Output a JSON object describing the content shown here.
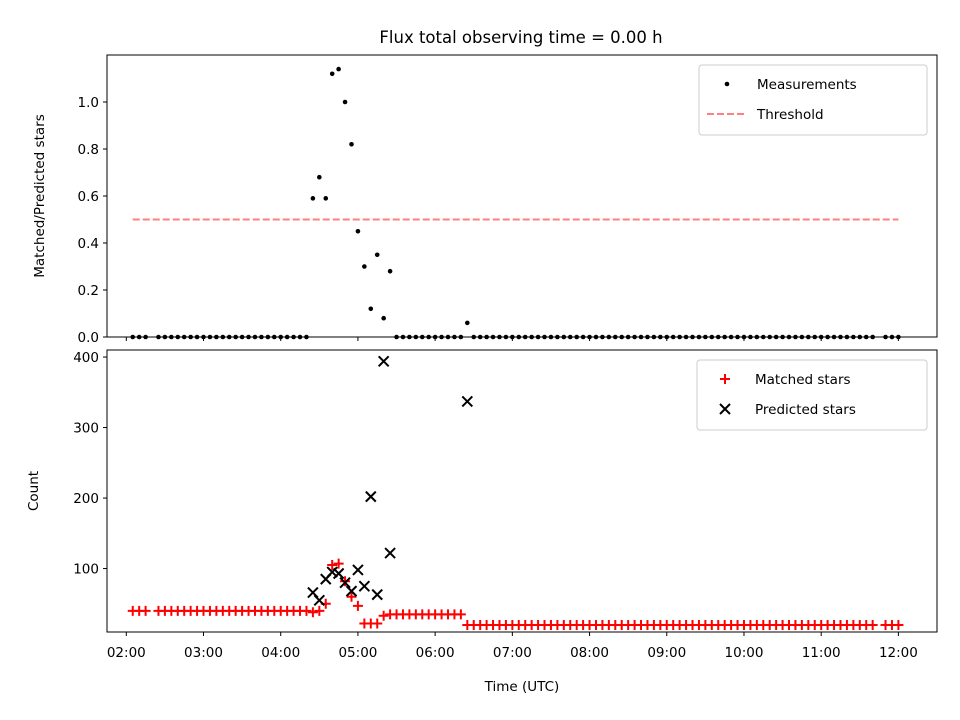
{
  "title": "Flux total observing time = 0.00 h",
  "chart_data": [
    {
      "type": "scatter",
      "ylabel": "Matched/Predicted stars",
      "ylim": [
        0,
        1.2
      ],
      "yticks": [
        0.0,
        0.2,
        0.4,
        0.6,
        0.8,
        1.0
      ],
      "yticklabels": [
        "0.0",
        "0.2",
        "0.4",
        "0.6",
        "0.8",
        "1.0"
      ],
      "xlim": [
        "01:45",
        "12:30"
      ],
      "legend": {
        "position": "top-right",
        "entries": [
          "Measurements",
          "Threshold"
        ]
      },
      "series": [
        {
          "name": "Measurements",
          "marker": "dot",
          "color": "#000000",
          "points": [
            [
              "02:05",
              0.0
            ],
            [
              "02:10",
              0.0
            ],
            [
              "02:15",
              0.0
            ],
            [
              "02:25",
              0.0
            ],
            [
              "02:30",
              0.0
            ],
            [
              "02:35",
              0.0
            ],
            [
              "02:40",
              0.0
            ],
            [
              "02:45",
              0.0
            ],
            [
              "02:50",
              0.0
            ],
            [
              "02:55",
              0.0
            ],
            [
              "03:00",
              0.0
            ],
            [
              "03:05",
              0.0
            ],
            [
              "03:10",
              0.0
            ],
            [
              "03:15",
              0.0
            ],
            [
              "03:20",
              0.0
            ],
            [
              "03:25",
              0.0
            ],
            [
              "03:30",
              0.0
            ],
            [
              "03:35",
              0.0
            ],
            [
              "03:40",
              0.0
            ],
            [
              "03:45",
              0.0
            ],
            [
              "03:50",
              0.0
            ],
            [
              "03:55",
              0.0
            ],
            [
              "04:00",
              0.0
            ],
            [
              "04:05",
              0.0
            ],
            [
              "04:10",
              0.0
            ],
            [
              "04:15",
              0.0
            ],
            [
              "04:20",
              0.0
            ],
            [
              "04:25",
              0.59
            ],
            [
              "04:30",
              0.68
            ],
            [
              "04:35",
              0.59
            ],
            [
              "04:40",
              1.12
            ],
            [
              "04:45",
              1.14
            ],
            [
              "04:50",
              1.0
            ],
            [
              "04:55",
              0.82
            ],
            [
              "05:00",
              0.45
            ],
            [
              "05:05",
              0.3
            ],
            [
              "05:10",
              0.12
            ],
            [
              "05:15",
              0.35
            ],
            [
              "05:20",
              0.08
            ],
            [
              "05:25",
              0.28
            ],
            [
              "05:30",
              0.0
            ],
            [
              "05:35",
              0.0
            ],
            [
              "05:40",
              0.0
            ],
            [
              "05:45",
              0.0
            ],
            [
              "05:50",
              0.0
            ],
            [
              "05:55",
              0.0
            ],
            [
              "06:00",
              0.0
            ],
            [
              "06:05",
              0.0
            ],
            [
              "06:10",
              0.0
            ],
            [
              "06:15",
              0.0
            ],
            [
              "06:20",
              0.0
            ],
            [
              "06:25",
              0.06
            ],
            [
              "06:30",
              0.0
            ],
            [
              "06:35",
              0.0
            ],
            [
              "06:40",
              0.0
            ],
            [
              "06:45",
              0.0
            ],
            [
              "06:50",
              0.0
            ],
            [
              "06:55",
              0.0
            ],
            [
              "07:00",
              0.0
            ],
            [
              "07:05",
              0.0
            ],
            [
              "07:10",
              0.0
            ],
            [
              "07:15",
              0.0
            ],
            [
              "07:20",
              0.0
            ],
            [
              "07:25",
              0.0
            ],
            [
              "07:30",
              0.0
            ],
            [
              "07:35",
              0.0
            ],
            [
              "07:40",
              0.0
            ],
            [
              "07:45",
              0.0
            ],
            [
              "07:50",
              0.0
            ],
            [
              "07:55",
              0.0
            ],
            [
              "08:00",
              0.0
            ],
            [
              "08:05",
              0.0
            ],
            [
              "08:10",
              0.0
            ],
            [
              "08:15",
              0.0
            ],
            [
              "08:20",
              0.0
            ],
            [
              "08:25",
              0.0
            ],
            [
              "08:30",
              0.0
            ],
            [
              "08:35",
              0.0
            ],
            [
              "08:40",
              0.0
            ],
            [
              "08:45",
              0.0
            ],
            [
              "08:50",
              0.0
            ],
            [
              "08:55",
              0.0
            ],
            [
              "09:00",
              0.0
            ],
            [
              "09:05",
              0.0
            ],
            [
              "09:10",
              0.0
            ],
            [
              "09:15",
              0.0
            ],
            [
              "09:20",
              0.0
            ],
            [
              "09:25",
              0.0
            ],
            [
              "09:30",
              0.0
            ],
            [
              "09:35",
              0.0
            ],
            [
              "09:40",
              0.0
            ],
            [
              "09:45",
              0.0
            ],
            [
              "09:50",
              0.0
            ],
            [
              "09:55",
              0.0
            ],
            [
              "10:00",
              0.0
            ],
            [
              "10:05",
              0.0
            ],
            [
              "10:10",
              0.0
            ],
            [
              "10:15",
              0.0
            ],
            [
              "10:20",
              0.0
            ],
            [
              "10:25",
              0.0
            ],
            [
              "10:30",
              0.0
            ],
            [
              "10:35",
              0.0
            ],
            [
              "10:40",
              0.0
            ],
            [
              "10:45",
              0.0
            ],
            [
              "10:50",
              0.0
            ],
            [
              "10:55",
              0.0
            ],
            [
              "11:00",
              0.0
            ],
            [
              "11:05",
              0.0
            ],
            [
              "11:10",
              0.0
            ],
            [
              "11:15",
              0.0
            ],
            [
              "11:20",
              0.0
            ],
            [
              "11:25",
              0.0
            ],
            [
              "11:30",
              0.0
            ],
            [
              "11:35",
              0.0
            ],
            [
              "11:40",
              0.0
            ],
            [
              "11:50",
              0.0
            ],
            [
              "11:55",
              0.0
            ],
            [
              "12:00",
              0.0
            ]
          ]
        },
        {
          "name": "Threshold",
          "style": "dashed-line",
          "color": "#ff7f7f",
          "points": [
            [
              "02:05",
              0.5
            ],
            [
              "12:00",
              0.5
            ]
          ]
        }
      ]
    },
    {
      "type": "scatter",
      "xlabel": "Time (UTC)",
      "ylabel": "Count",
      "ylim": [
        10,
        410
      ],
      "yticks": [
        100,
        200,
        300,
        400
      ],
      "yticklabels": [
        "100",
        "200",
        "300",
        "400"
      ],
      "xlim": [
        "01:45",
        "12:30"
      ],
      "xticks": [
        "02:00",
        "03:00",
        "04:00",
        "05:00",
        "06:00",
        "07:00",
        "08:00",
        "09:00",
        "10:00",
        "11:00",
        "12:00"
      ],
      "xticklabels": [
        "02:00",
        "03:00",
        "04:00",
        "05:00",
        "06:00",
        "07:00",
        "08:00",
        "09:00",
        "10:00",
        "11:00",
        "12:00"
      ],
      "legend": {
        "position": "top-right",
        "entries": [
          "Matched stars",
          "Predicted stars"
        ]
      },
      "series": [
        {
          "name": "Matched stars",
          "marker": "plus",
          "color": "#ff0000",
          "points": [
            [
              "02:05",
              40
            ],
            [
              "02:10",
              40
            ],
            [
              "02:15",
              40
            ],
            [
              "02:25",
              40
            ],
            [
              "02:30",
              40
            ],
            [
              "02:35",
              40
            ],
            [
              "02:40",
              40
            ],
            [
              "02:45",
              40
            ],
            [
              "02:50",
              40
            ],
            [
              "02:55",
              40
            ],
            [
              "03:00",
              40
            ],
            [
              "03:05",
              40
            ],
            [
              "03:10",
              40
            ],
            [
              "03:15",
              40
            ],
            [
              "03:20",
              40
            ],
            [
              "03:25",
              40
            ],
            [
              "03:30",
              40
            ],
            [
              "03:35",
              40
            ],
            [
              "03:40",
              40
            ],
            [
              "03:45",
              40
            ],
            [
              "03:50",
              40
            ],
            [
              "03:55",
              40
            ],
            [
              "04:00",
              40
            ],
            [
              "04:05",
              40
            ],
            [
              "04:10",
              40
            ],
            [
              "04:15",
              40
            ],
            [
              "04:20",
              40
            ],
            [
              "04:25",
              38
            ],
            [
              "04:30",
              40
            ],
            [
              "04:35",
              50
            ],
            [
              "04:40",
              105
            ],
            [
              "04:45",
              107
            ],
            [
              "04:50",
              82
            ],
            [
              "04:55",
              60
            ],
            [
              "05:00",
              47
            ],
            [
              "05:05",
              22
            ],
            [
              "05:10",
              22
            ],
            [
              "05:15",
              22
            ],
            [
              "05:20",
              33
            ],
            [
              "05:25",
              35
            ],
            [
              "05:30",
              35
            ],
            [
              "05:35",
              35
            ],
            [
              "05:40",
              35
            ],
            [
              "05:45",
              35
            ],
            [
              "05:50",
              35
            ],
            [
              "05:55",
              35
            ],
            [
              "06:00",
              35
            ],
            [
              "06:05",
              35
            ],
            [
              "06:10",
              35
            ],
            [
              "06:15",
              35
            ],
            [
              "06:20",
              35
            ],
            [
              "06:25",
              20
            ],
            [
              "06:30",
              20
            ],
            [
              "06:35",
              20
            ],
            [
              "06:40",
              20
            ],
            [
              "06:45",
              20
            ],
            [
              "06:50",
              20
            ],
            [
              "06:55",
              20
            ],
            [
              "07:00",
              20
            ],
            [
              "07:05",
              20
            ],
            [
              "07:10",
              20
            ],
            [
              "07:15",
              20
            ],
            [
              "07:20",
              20
            ],
            [
              "07:25",
              20
            ],
            [
              "07:30",
              20
            ],
            [
              "07:35",
              20
            ],
            [
              "07:40",
              20
            ],
            [
              "07:45",
              20
            ],
            [
              "07:50",
              20
            ],
            [
              "07:55",
              20
            ],
            [
              "08:00",
              20
            ],
            [
              "08:05",
              20
            ],
            [
              "08:10",
              20
            ],
            [
              "08:15",
              20
            ],
            [
              "08:20",
              20
            ],
            [
              "08:25",
              20
            ],
            [
              "08:30",
              20
            ],
            [
              "08:35",
              20
            ],
            [
              "08:40",
              20
            ],
            [
              "08:45",
              20
            ],
            [
              "08:50",
              20
            ],
            [
              "08:55",
              20
            ],
            [
              "09:00",
              20
            ],
            [
              "09:05",
              20
            ],
            [
              "09:10",
              20
            ],
            [
              "09:15",
              20
            ],
            [
              "09:20",
              20
            ],
            [
              "09:25",
              20
            ],
            [
              "09:30",
              20
            ],
            [
              "09:35",
              20
            ],
            [
              "09:40",
              20
            ],
            [
              "09:45",
              20
            ],
            [
              "09:50",
              20
            ],
            [
              "09:55",
              20
            ],
            [
              "10:00",
              20
            ],
            [
              "10:05",
              20
            ],
            [
              "10:10",
              20
            ],
            [
              "10:15",
              20
            ],
            [
              "10:20",
              20
            ],
            [
              "10:25",
              20
            ],
            [
              "10:30",
              20
            ],
            [
              "10:35",
              20
            ],
            [
              "10:40",
              20
            ],
            [
              "10:45",
              20
            ],
            [
              "10:50",
              20
            ],
            [
              "10:55",
              20
            ],
            [
              "11:00",
              20
            ],
            [
              "11:05",
              20
            ],
            [
              "11:10",
              20
            ],
            [
              "11:15",
              20
            ],
            [
              "11:20",
              20
            ],
            [
              "11:25",
              20
            ],
            [
              "11:30",
              20
            ],
            [
              "11:35",
              20
            ],
            [
              "11:40",
              20
            ],
            [
              "11:50",
              20
            ],
            [
              "11:55",
              20
            ],
            [
              "12:00",
              20
            ]
          ]
        },
        {
          "name": "Predicted stars",
          "marker": "x",
          "color": "#000000",
          "points": [
            [
              "04:25",
              66
            ],
            [
              "04:30",
              55
            ],
            [
              "04:35",
              85
            ],
            [
              "04:40",
              95
            ],
            [
              "04:45",
              93
            ],
            [
              "04:50",
              80
            ],
            [
              "04:55",
              68
            ],
            [
              "05:00",
              98
            ],
            [
              "05:05",
              75
            ],
            [
              "05:10",
              202
            ],
            [
              "05:15",
              63
            ],
            [
              "05:20",
              394
            ],
            [
              "05:25",
              122
            ],
            [
              "06:25",
              337
            ]
          ]
        }
      ]
    }
  ]
}
